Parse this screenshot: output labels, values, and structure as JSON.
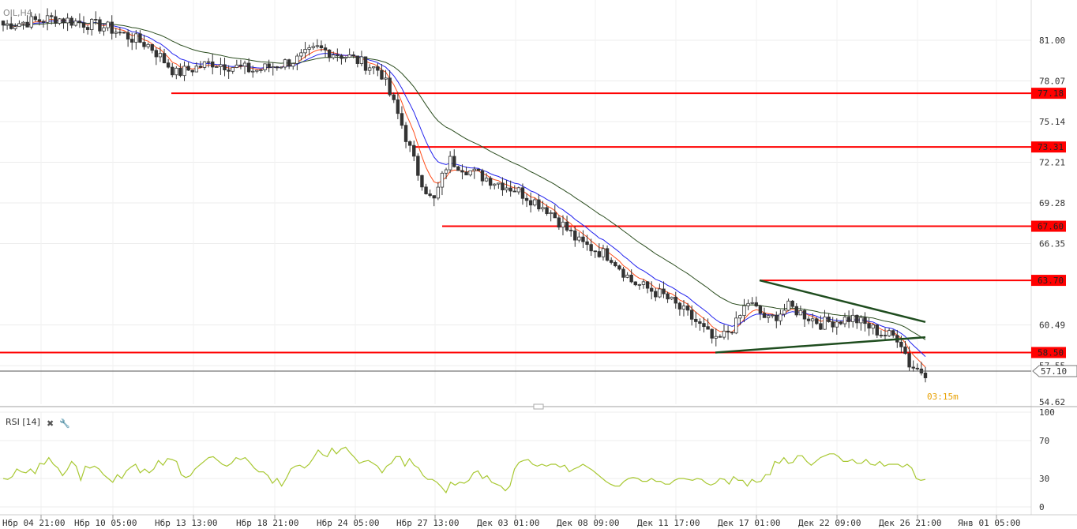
{
  "symbol_label": "OIL,H4",
  "timer": "03:15m",
  "rsi_label": "RSI [14]",
  "colors": {
    "level": "#ff0000",
    "ma_fast": "#ff4d1a",
    "ma_mid": "#2222ee",
    "ma_slow": "#2b4d1f",
    "trendline": "#1f4d1f",
    "rsi": "#a8c832",
    "grid": "#ececec",
    "candle_up": "#ffffff",
    "candle_down": "#333333"
  },
  "chart_data": [
    {
      "type": "candlestick",
      "title": "OIL,H4",
      "ylim": [
        54.62,
        82.5
      ],
      "y_ticks": [
        "81.00",
        "78.07",
        "75.14",
        "72.21",
        "69.28",
        "66.35",
        "60.49",
        "57.55",
        "54.62"
      ],
      "x_ticks": [
        "Нбр 04 21:00",
        "Нбр 10 05:00",
        "Нбр 13 13:00",
        "Нбр 18 21:00",
        "Нбр 24 05:00",
        "Нбр 27 13:00",
        "Дек 03 01:00",
        "Дек 08 09:00",
        "Дек 11 17:00",
        "Дек 17 01:00",
        "Дек 22 09:00",
        "Дек 26 21:00",
        "Янв 01 05:00"
      ],
      "current_price": "57.10",
      "levels": [
        "77.18",
        "73.31",
        "67.60",
        "63.70",
        "58.50"
      ],
      "close_path": [
        {
          "x": 0.0,
          "y": 82.1
        },
        {
          "x": 0.05,
          "y": 82.6
        },
        {
          "x": 0.1,
          "y": 81.9
        },
        {
          "x": 0.14,
          "y": 80.6
        },
        {
          "x": 0.165,
          "y": 78.6
        },
        {
          "x": 0.2,
          "y": 79.4
        },
        {
          "x": 0.24,
          "y": 78.8
        },
        {
          "x": 0.28,
          "y": 79.6
        },
        {
          "x": 0.3,
          "y": 80.4
        },
        {
          "x": 0.33,
          "y": 79.8
        },
        {
          "x": 0.36,
          "y": 78.8
        },
        {
          "x": 0.38,
          "y": 75.0
        },
        {
          "x": 0.395,
          "y": 71.6
        },
        {
          "x": 0.41,
          "y": 69.2
        },
        {
          "x": 0.425,
          "y": 72.4
        },
        {
          "x": 0.45,
          "y": 71.4
        },
        {
          "x": 0.49,
          "y": 70.2
        },
        {
          "x": 0.52,
          "y": 68.8
        },
        {
          "x": 0.55,
          "y": 66.4
        },
        {
          "x": 0.58,
          "y": 65.4
        },
        {
          "x": 0.6,
          "y": 63.6
        },
        {
          "x": 0.63,
          "y": 62.6
        },
        {
          "x": 0.66,
          "y": 60.8
        },
        {
          "x": 0.68,
          "y": 59.2
        },
        {
          "x": 0.7,
          "y": 60.6
        },
        {
          "x": 0.71,
          "y": 62.2
        },
        {
          "x": 0.73,
          "y": 60.8
        },
        {
          "x": 0.75,
          "y": 61.8
        },
        {
          "x": 0.78,
          "y": 60.6
        },
        {
          "x": 0.81,
          "y": 61.0
        },
        {
          "x": 0.84,
          "y": 59.8
        },
        {
          "x": 0.855,
          "y": 59.6
        },
        {
          "x": 0.865,
          "y": 57.6
        },
        {
          "x": 0.875,
          "y": 57.2
        },
        {
          "x": 0.88,
          "y": 57.1
        }
      ]
    },
    {
      "type": "line",
      "title": "RSI [14]",
      "ylim": [
        0,
        100
      ],
      "y_ticks": [
        "100",
        "70",
        "30",
        "0"
      ],
      "values": [
        30,
        29,
        32,
        40,
        37,
        36,
        40,
        35,
        46,
        45,
        52,
        45,
        41,
        33,
        39,
        48,
        43,
        28,
        43,
        41,
        43,
        40,
        34,
        30,
        26,
        34,
        30,
        38,
        42,
        45,
        36,
        40,
        36,
        40,
        49,
        44,
        51,
        50,
        48,
        34,
        31,
        33,
        40,
        44,
        48,
        52,
        53,
        49,
        45,
        43,
        46,
        52,
        50,
        52,
        47,
        41,
        37,
        37,
        33,
        25,
        30,
        22,
        30,
        40,
        43,
        44,
        41,
        45,
        52,
        60,
        55,
        53,
        62,
        56,
        61,
        63,
        57,
        52,
        46,
        48,
        49,
        46,
        43,
        36,
        43,
        46,
        53,
        53,
        43,
        51,
        44,
        41,
        33,
        29,
        29,
        26,
        21,
        15,
        26,
        23,
        26,
        25,
        28,
        36,
        38,
        30,
        33,
        26,
        24,
        22,
        17,
        22,
        40,
        47,
        49,
        50,
        45,
        43,
        45,
        43,
        45,
        45,
        42,
        44,
        37,
        40,
        42,
        45,
        42,
        39,
        35,
        31,
        27,
        24,
        22,
        22,
        27,
        30,
        31,
        30,
        27,
        27,
        30,
        27,
        27,
        24,
        24,
        28,
        30,
        30,
        29,
        28,
        30,
        29,
        25,
        23,
        25,
        30,
        29,
        24,
        32,
        28,
        28,
        22,
        29,
        26,
        27,
        34,
        34,
        48,
        46,
        52,
        46,
        47,
        54,
        54,
        48,
        44,
        48,
        52,
        54,
        56,
        56,
        53,
        48,
        48,
        50,
        46,
        46,
        50,
        45,
        44,
        48,
        43,
        45,
        45,
        45,
        42,
        45,
        41,
        30,
        28,
        29
      ]
    }
  ]
}
